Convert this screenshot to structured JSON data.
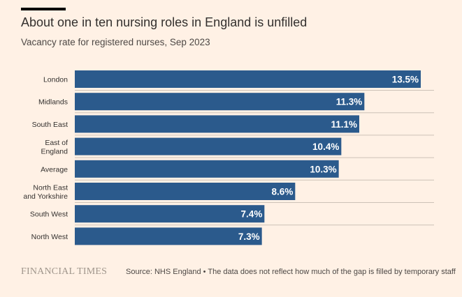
{
  "header": {
    "title": "About one in ten nursing roles in England is unfilled",
    "subtitle": "Vacancy rate for registered nurses, Sep 2023"
  },
  "footer": {
    "brand": "FINANCIAL TIMES",
    "source": "Source: NHS England • The data does not reflect how much of the gap is filled by temporary staff"
  },
  "colors": {
    "bar": "#2b5a8c",
    "background": "#fff1e5",
    "gridline": "#ccc1b7"
  },
  "chart_data": {
    "type": "bar",
    "orientation": "horizontal",
    "title": "About one in ten nursing roles in England is unfilled",
    "subtitle": "Vacancy rate for registered nurses, Sep 2023",
    "categories": [
      [
        "London"
      ],
      [
        "Midlands"
      ],
      [
        "South East"
      ],
      [
        "East of",
        "England"
      ],
      [
        "Average"
      ],
      [
        "North East",
        "and Yorkshire"
      ],
      [
        "South West"
      ],
      [
        "North West"
      ]
    ],
    "values": [
      13.5,
      11.3,
      11.1,
      10.4,
      10.3,
      8.6,
      7.4,
      7.3
    ],
    "value_labels": [
      "13.5%",
      "11.3%",
      "11.1%",
      "10.4%",
      "10.3%",
      "8.6%",
      "7.4%",
      "7.3%"
    ],
    "xlim": [
      0,
      13.5
    ],
    "grid": true
  }
}
